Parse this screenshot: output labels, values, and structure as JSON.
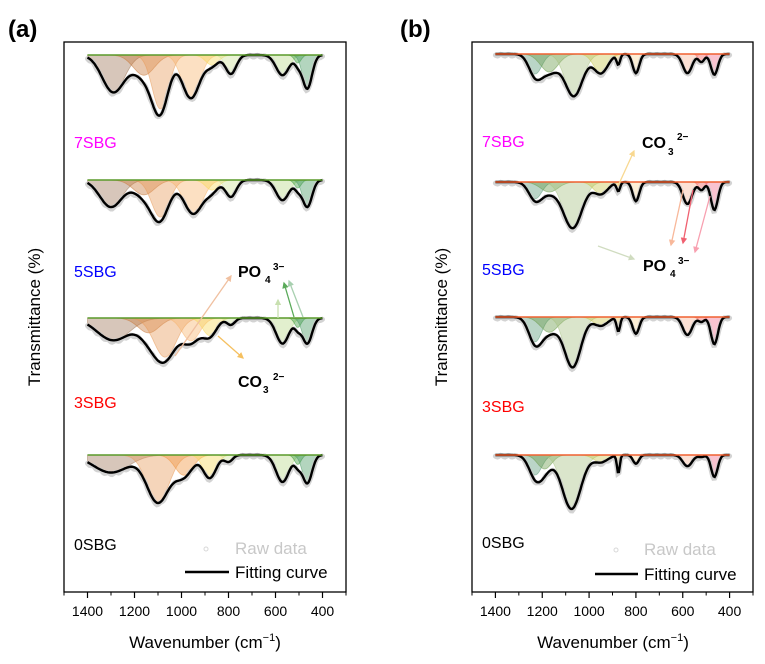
{
  "chart_data": [
    {
      "panel": "(a)",
      "type": "area",
      "title": "",
      "xlabel": "Wavenumber (cm⁻¹)",
      "ylabel": "Transmittance (%)",
      "xlim": [
        1500,
        300
      ],
      "x_ticks": [
        1400,
        1200,
        1000,
        800,
        600,
        400
      ],
      "x_minor_ticks": [
        1500,
        1300,
        1100,
        900,
        700,
        500,
        300
      ],
      "x_range_data": [
        1400,
        400
      ],
      "grid": false,
      "legend": {
        "placement": "bottom-right",
        "entries": [
          {
            "label": "Raw data",
            "style": "circle-marker",
            "color": "#c8c8c8"
          },
          {
            "label": "Fitting curve",
            "style": "line",
            "color": "#000000"
          }
        ]
      },
      "annotations": [
        {
          "ion": "PO",
          "sub": "4",
          "sup": "3−",
          "position": "between 5SBG and 3SBG, right of center"
        },
        {
          "ion": "CO",
          "sub": "3",
          "sup": "2−",
          "position": "below 3SBG components, right of center"
        }
      ],
      "series": [
        {
          "name": "7SBG",
          "label_color": "#ff00ff",
          "order_from_top": 0,
          "components": [
            {
              "center": 1290,
              "depth": 0.55,
              "width": 95,
              "color": "#a0785a"
            },
            {
              "center": 1160,
              "depth": 0.3,
              "width": 90,
              "color": "#c87a3c"
            },
            {
              "center": 1090,
              "depth": 0.8,
              "width": 70,
              "color": "#e89a5a"
            },
            {
              "center": 960,
              "depth": 0.64,
              "width": 75,
              "color": "#f7b56e"
            },
            {
              "center": 870,
              "depth": 0.15,
              "width": 55,
              "color": "#f8d85a"
            },
            {
              "center": 790,
              "depth": 0.28,
              "width": 45,
              "color": "#cfe39a"
            },
            {
              "center": 570,
              "depth": 0.3,
              "width": 55,
              "color": "#b9d98a"
            },
            {
              "center": 505,
              "depth": 0.12,
              "width": 28,
              "color": "#3a9a3a"
            },
            {
              "center": 465,
              "depth": 0.5,
              "width": 40,
              "color": "#4a9a64"
            }
          ]
        },
        {
          "name": "5SBG",
          "label_color": "#0000ff",
          "order_from_top": 1,
          "components": [
            {
              "center": 1300,
              "depth": 0.4,
              "width": 95,
              "color": "#a0785a"
            },
            {
              "center": 1160,
              "depth": 0.22,
              "width": 90,
              "color": "#c87a3c"
            },
            {
              "center": 1090,
              "depth": 0.55,
              "width": 75,
              "color": "#e89a5a"
            },
            {
              "center": 950,
              "depth": 0.5,
              "width": 80,
              "color": "#f7b56e"
            },
            {
              "center": 870,
              "depth": 0.15,
              "width": 55,
              "color": "#f8d85a"
            },
            {
              "center": 790,
              "depth": 0.25,
              "width": 45,
              "color": "#cfe39a"
            },
            {
              "center": 570,
              "depth": 0.3,
              "width": 55,
              "color": "#b9d98a"
            },
            {
              "center": 505,
              "depth": 0.12,
              "width": 28,
              "color": "#3a9a3a"
            },
            {
              "center": 465,
              "depth": 0.4,
              "width": 40,
              "color": "#4a9a64"
            }
          ]
        },
        {
          "name": "3SBG",
          "label_color": "#ff0000",
          "order_from_top": 2,
          "components": [
            {
              "center": 1290,
              "depth": 0.33,
              "width": 140,
              "color": "#a0785a"
            },
            {
              "center": 1140,
              "depth": 0.22,
              "width": 90,
              "color": "#c87a3c"
            },
            {
              "center": 1070,
              "depth": 0.58,
              "width": 95,
              "color": "#e89a5a"
            },
            {
              "center": 960,
              "depth": 0.34,
              "width": 75,
              "color": "#f7b56e"
            },
            {
              "center": 880,
              "depth": 0.26,
              "width": 60,
              "color": "#f8d85a"
            },
            {
              "center": 790,
              "depth": 0.1,
              "width": 35,
              "color": "#cfe39a"
            },
            {
              "center": 570,
              "depth": 0.38,
              "width": 55,
              "color": "#b9d98a"
            },
            {
              "center": 505,
              "depth": 0.14,
              "width": 28,
              "color": "#3a9a3a"
            },
            {
              "center": 465,
              "depth": 0.38,
              "width": 40,
              "color": "#4a9a64"
            }
          ]
        },
        {
          "name": "0SBG",
          "label_color": "#000000",
          "order_from_top": 3,
          "components": [
            {
              "center": 1300,
              "depth": 0.26,
              "width": 150,
              "color": "#a0785a"
            },
            {
              "center": 1100,
              "depth": 0.7,
              "width": 95,
              "color": "#e89a5a"
            },
            {
              "center": 990,
              "depth": 0.3,
              "width": 75,
              "color": "#f0943c"
            },
            {
              "center": 880,
              "depth": 0.34,
              "width": 55,
              "color": "#f8d85a"
            },
            {
              "center": 800,
              "depth": 0.1,
              "width": 35,
              "color": "#cfe39a"
            },
            {
              "center": 570,
              "depth": 0.4,
              "width": 55,
              "color": "#b9d98a"
            },
            {
              "center": 505,
              "depth": 0.14,
              "width": 28,
              "color": "#3a9a3a"
            },
            {
              "center": 465,
              "depth": 0.42,
              "width": 40,
              "color": "#4a9a64"
            }
          ]
        }
      ],
      "baseline_color": "#5a9a2a"
    },
    {
      "panel": "(b)",
      "type": "area",
      "title": "",
      "xlabel": "Wavenumber (cm⁻¹)",
      "ylabel": "Transmittance (%)",
      "xlim": [
        1500,
        300
      ],
      "x_ticks": [
        1400,
        1200,
        1000,
        800,
        600,
        400
      ],
      "x_minor_ticks": [
        1500,
        1300,
        1100,
        900,
        700,
        500,
        300
      ],
      "x_range_data": [
        1400,
        400
      ],
      "grid": false,
      "legend": {
        "placement": "bottom-right",
        "entries": [
          {
            "label": "Raw data",
            "style": "circle-marker",
            "color": "#c8c8c8"
          },
          {
            "label": "Fitting curve",
            "style": "line",
            "color": "#000000"
          }
        ]
      },
      "annotations": [
        {
          "ion": "CO",
          "sub": "3",
          "sup": "2−",
          "position": "between 7SBG and 5SBG, right of center"
        },
        {
          "ion": "PO",
          "sub": "4",
          "sup": "3−",
          "position": "below 5SBG, right of center"
        }
      ],
      "series": [
        {
          "name": "7SBG",
          "label_color": "#ff00ff",
          "order_from_top": 0,
          "components": [
            {
              "center": 1230,
              "depth": 0.5,
              "width": 55,
              "color": "#5a9a7a"
            },
            {
              "center": 1170,
              "depth": 0.45,
              "width": 75,
              "color": "#6a9a4a"
            },
            {
              "center": 1065,
              "depth": 1.05,
              "width": 75,
              "color": "#a8c282"
            },
            {
              "center": 950,
              "depth": 0.48,
              "width": 60,
              "color": "#c8c850"
            },
            {
              "center": 875,
              "depth": 0.25,
              "width": 15,
              "color": "#e8c860"
            },
            {
              "center": 800,
              "depth": 0.48,
              "width": 28,
              "color": "#f8d8a0"
            },
            {
              "center": 580,
              "depth": 0.48,
              "width": 40,
              "color": "#f8b89a"
            },
            {
              "center": 520,
              "depth": 0.2,
              "width": 25,
              "color": "#f06060"
            },
            {
              "center": 465,
              "depth": 0.52,
              "width": 30,
              "color": "#f07090"
            }
          ]
        },
        {
          "name": "5SBG",
          "label_color": "#0000ff",
          "order_from_top": 1,
          "components": [
            {
              "center": 1230,
              "depth": 0.42,
              "width": 55,
              "color": "#5a9a7a"
            },
            {
              "center": 1170,
              "depth": 0.25,
              "width": 75,
              "color": "#6a9a4a"
            },
            {
              "center": 1070,
              "depth": 1.15,
              "width": 80,
              "color": "#a8c282"
            },
            {
              "center": 950,
              "depth": 0.3,
              "width": 60,
              "color": "#c8c850"
            },
            {
              "center": 875,
              "depth": 0.22,
              "width": 15,
              "color": "#e8c860"
            },
            {
              "center": 800,
              "depth": 0.48,
              "width": 28,
              "color": "#f8d8a0"
            },
            {
              "center": 580,
              "depth": 0.55,
              "width": 40,
              "color": "#f8b89a"
            },
            {
              "center": 520,
              "depth": 0.2,
              "width": 25,
              "color": "#f06060"
            },
            {
              "center": 465,
              "depth": 0.7,
              "width": 30,
              "color": "#f07090"
            }
          ]
        },
        {
          "name": "3SBG",
          "label_color": "#ff0000",
          "order_from_top": 2,
          "components": [
            {
              "center": 1230,
              "depth": 0.62,
              "width": 55,
              "color": "#5a9a7a"
            },
            {
              "center": 1170,
              "depth": 0.38,
              "width": 75,
              "color": "#6a9a4a"
            },
            {
              "center": 1070,
              "depth": 1.25,
              "width": 70,
              "color": "#a8c282"
            },
            {
              "center": 950,
              "depth": 0.22,
              "width": 60,
              "color": "#c8c850"
            },
            {
              "center": 875,
              "depth": 0.35,
              "width": 15,
              "color": "#e8c860"
            },
            {
              "center": 800,
              "depth": 0.42,
              "width": 28,
              "color": "#f8d8a0"
            },
            {
              "center": 580,
              "depth": 0.45,
              "width": 40,
              "color": "#f8b89a"
            },
            {
              "center": 520,
              "depth": 0.12,
              "width": 25,
              "color": "#f06060"
            },
            {
              "center": 465,
              "depth": 0.68,
              "width": 30,
              "color": "#f07090"
            }
          ]
        },
        {
          "name": "0SBG",
          "label_color": "#000000",
          "order_from_top": 3,
          "components": [
            {
              "center": 1230,
              "depth": 0.5,
              "width": 55,
              "color": "#5a9a7a"
            },
            {
              "center": 1190,
              "depth": 0.35,
              "width": 60,
              "color": "#6a9a4a"
            },
            {
              "center": 1075,
              "depth": 1.35,
              "width": 80,
              "color": "#a8c282"
            },
            {
              "center": 950,
              "depth": 0.18,
              "width": 60,
              "color": "#c8c850"
            },
            {
              "center": 875,
              "depth": 0.45,
              "width": 12,
              "color": "#e8c860"
            },
            {
              "center": 800,
              "depth": 0.22,
              "width": 25,
              "color": "#f8d8a0"
            },
            {
              "center": 580,
              "depth": 0.28,
              "width": 40,
              "color": "#f8b89a"
            },
            {
              "center": 520,
              "depth": 0.05,
              "width": 25,
              "color": "#f06060"
            },
            {
              "center": 465,
              "depth": 0.55,
              "width": 28,
              "color": "#f07090"
            }
          ]
        }
      ],
      "baseline_color": "#f06030"
    }
  ],
  "labels": {
    "panel_a": "(a)",
    "panel_b": "(b)",
    "ylabel": "Transmittance (%)",
    "xlabel_main": "Wavenumber (cm",
    "xlabel_sup": "−1",
    "xlabel_end": ")",
    "legend_raw": "Raw data",
    "legend_fit": "Fitting curve",
    "ion_po": "PO",
    "ion_po_sub": "4",
    "ion_po_sup": "3−",
    "ion_co": "CO",
    "ion_co_sub": "3",
    "ion_co_sup": "2−"
  }
}
